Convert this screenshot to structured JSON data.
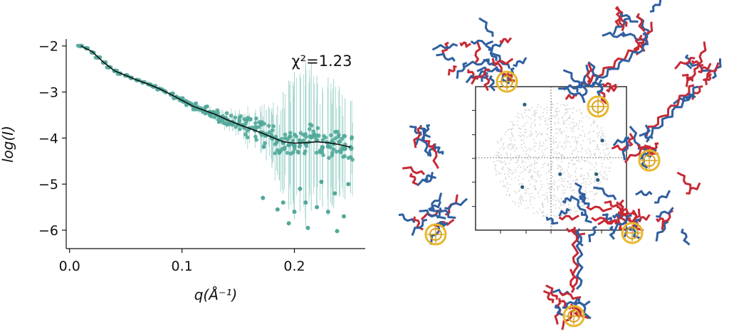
{
  "chart_data": [
    {
      "type": "scatter",
      "xlabel": "q(Å⁻¹)",
      "ylabel": "log(I)",
      "annotation": "χ²=1.23",
      "xlim": [
        -0.003,
        0.263
      ],
      "ylim": [
        -6.4,
        -1.85
      ],
      "x_ticks": [
        0.0,
        0.1,
        0.2
      ],
      "x_tick_labels": [
        "0.0",
        "0.1",
        "0.2"
      ],
      "y_ticks": [
        -2,
        -3,
        -4,
        -5,
        -6
      ],
      "y_tick_labels": [
        "−2",
        "−3",
        "−4",
        "−5",
        "−6"
      ],
      "grid": false,
      "colors": {
        "points": "#52a89a",
        "errorbars": "#9fd3cb",
        "fit": "#111111"
      },
      "series": [
        {
          "type": "scatter",
          "x": [
            0.01,
            0.015,
            0.02,
            0.025,
            0.03,
            0.035,
            0.04,
            0.045,
            0.05,
            0.055,
            0.06,
            0.065,
            0.07,
            0.075,
            0.08,
            0.085,
            0.09,
            0.095,
            0.1,
            0.105,
            0.11,
            0.115,
            0.12,
            0.125,
            0.13,
            0.135,
            0.14,
            0.145,
            0.15,
            0.155,
            0.16,
            0.165,
            0.17,
            0.175,
            0.18,
            0.185,
            0.19,
            0.195,
            0.2,
            0.205,
            0.21,
            0.215,
            0.22,
            0.225,
            0.23,
            0.235,
            0.24,
            0.245,
            0.25
          ],
          "y": [
            -2.0,
            -2.05,
            -2.14,
            -2.25,
            -2.36,
            -2.46,
            -2.54,
            -2.6,
            -2.64,
            -2.69,
            -2.74,
            -2.79,
            -2.83,
            -2.88,
            -2.93,
            -2.99,
            -3.05,
            -3.11,
            -3.18,
            -3.25,
            -3.31,
            -3.36,
            -3.4,
            -3.44,
            -3.49,
            -3.55,
            -3.6,
            -3.65,
            -3.7,
            -3.75,
            -3.79,
            -3.83,
            -3.88,
            -3.94,
            -4.0,
            -4.05,
            -4.1,
            -4.15,
            -4.17,
            -4.1,
            -4.12,
            -3.98,
            -4.05,
            -4.2,
            -4.18,
            -4.12,
            -4.08,
            -4.23,
            -4.2
          ],
          "error": [
            0.02,
            0.02,
            0.02,
            0.02,
            0.02,
            0.03,
            0.03,
            0.03,
            0.03,
            0.04,
            0.04,
            0.04,
            0.05,
            0.05,
            0.05,
            0.06,
            0.06,
            0.07,
            0.07,
            0.08,
            0.09,
            0.1,
            0.11,
            0.12,
            0.14,
            0.16,
            0.18,
            0.2,
            0.23,
            0.27,
            0.32,
            0.38,
            0.45,
            0.55,
            0.65,
            0.75,
            1.1,
            1.4,
            1.6,
            1.5,
            1.8,
            1.6,
            1.4,
            1.3,
            1.5,
            1.4,
            1.2,
            1.1,
            1.0
          ],
          "outliers": [
            {
              "x": 0.172,
              "y": -5.3
            },
            {
              "x": 0.185,
              "y": -5.55
            },
            {
              "x": 0.19,
              "y": -5.4
            },
            {
              "x": 0.195,
              "y": -5.85
            },
            {
              "x": 0.2,
              "y": -5.6
            },
            {
              "x": 0.205,
              "y": -5.1
            },
            {
              "x": 0.21,
              "y": -5.4
            },
            {
              "x": 0.212,
              "y": -5.95
            },
            {
              "x": 0.22,
              "y": -5.5
            },
            {
              "x": 0.224,
              "y": -4.95
            },
            {
              "x": 0.23,
              "y": -5.6
            },
            {
              "x": 0.236,
              "y": -5.2
            },
            {
              "x": 0.238,
              "y": -6.02
            },
            {
              "x": 0.244,
              "y": -5.7
            },
            {
              "x": 0.248,
              "y": -5.0
            }
          ]
        },
        {
          "type": "line",
          "x": [
            0.01,
            0.02,
            0.03,
            0.04,
            0.05,
            0.06,
            0.07,
            0.08,
            0.09,
            0.1,
            0.11,
            0.12,
            0.13,
            0.14,
            0.15,
            0.16,
            0.17,
            0.18,
            0.19,
            0.2,
            0.21,
            0.22,
            0.23,
            0.24,
            0.25
          ],
          "y": [
            -2.0,
            -2.12,
            -2.35,
            -2.54,
            -2.64,
            -2.74,
            -2.83,
            -2.93,
            -3.05,
            -3.18,
            -3.31,
            -3.4,
            -3.49,
            -3.6,
            -3.7,
            -3.79,
            -3.88,
            -3.98,
            -4.08,
            -4.11,
            -4.1,
            -4.08,
            -4.1,
            -4.14,
            -4.2
          ]
        }
      ]
    },
    {
      "type": "scatter",
      "grid": false,
      "colors": {
        "cloud": "#cfcfcf",
        "points": "#2b5f7a",
        "frame": "#222222",
        "crosshair": "#555555"
      },
      "highlighted_points": [
        {
          "x": -0.35,
          "y": 0.75
        },
        {
          "x": 0.68,
          "y": 0.25
        },
        {
          "x": 0.12,
          "y": -0.22
        },
        {
          "x": 0.6,
          "y": -0.22
        },
        {
          "x": 0.62,
          "y": -0.3
        },
        {
          "x": -0.38,
          "y": -0.4
        }
      ]
    }
  ],
  "figure_right": {
    "structure_colors": {
      "helix": "#c62a35",
      "sheet": "#2f5fa0",
      "ring": "#e8b62a"
    }
  }
}
